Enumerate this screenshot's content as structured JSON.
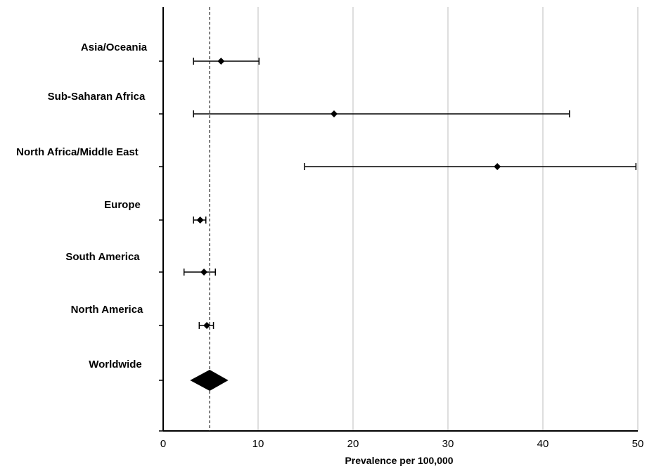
{
  "chart_data": {
    "type": "forest",
    "title": "",
    "xlabel": "Prevalence per 100,000",
    "ylabel": "",
    "xlim": [
      0,
      50
    ],
    "x_ticks": [
      0,
      10,
      20,
      30,
      40,
      50
    ],
    "x_tick_labels": [
      "0",
      "10",
      "20",
      "30",
      "40",
      "50"
    ],
    "grid": "vertical",
    "reference_line": 4.9,
    "rows": [
      {
        "label": "Asia/Oceania",
        "estimate": 6.1,
        "lower": 3.2,
        "upper": 10.1,
        "marker": "point"
      },
      {
        "label": "Sub-Saharan Africa",
        "estimate": 18.0,
        "lower": 3.2,
        "upper": 42.8,
        "marker": "point"
      },
      {
        "label": "North Africa/Middle East",
        "estimate": 35.2,
        "lower": 14.9,
        "upper": 49.8,
        "marker": "point"
      },
      {
        "label": "Europe",
        "estimate": 3.9,
        "lower": 3.2,
        "upper": 4.5,
        "marker": "point"
      },
      {
        "label": "South America",
        "estimate": 4.3,
        "lower": 2.2,
        "upper": 5.5,
        "marker": "point"
      },
      {
        "label": "North America",
        "estimate": 4.6,
        "lower": 3.8,
        "upper": 5.3,
        "marker": "point"
      },
      {
        "label": "Worldwide",
        "estimate": 4.9,
        "lower": 3.8,
        "upper": 5.9,
        "marker": "diamond"
      }
    ]
  }
}
